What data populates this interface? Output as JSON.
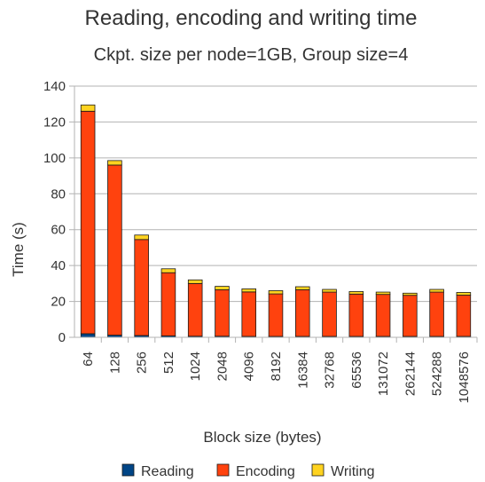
{
  "chart_data": {
    "type": "bar",
    "stacked": true,
    "title": "Reading, encoding and writing time",
    "subtitle": "Ckpt. size per node=1GB, Group size=4",
    "xlabel": "Block size (bytes)",
    "ylabel": "Time (s)",
    "ylim": [
      0,
      140
    ],
    "yticks": [
      "0",
      "20",
      "40",
      "60",
      "80",
      "100",
      "120",
      "140"
    ],
    "grid": true,
    "legend_position": "bottom",
    "categories": [
      "64",
      "128",
      "256",
      "512",
      "1024",
      "2048",
      "4096",
      "8192",
      "16384",
      "32768",
      "65536",
      "131072",
      "262144",
      "524288",
      "1048576"
    ],
    "series": [
      {
        "name": "Reading",
        "color": "#004586",
        "values": [
          2,
          1.2,
          1,
          0.8,
          0.6,
          0.6,
          0.5,
          0.5,
          0.5,
          0.5,
          0.5,
          0.5,
          0.5,
          0.5,
          0.5
        ]
      },
      {
        "name": "Encoding",
        "color": "#ff420e",
        "values": [
          124,
          94.8,
          53.5,
          35.2,
          29.4,
          25.9,
          24.8,
          23.7,
          26,
          24.7,
          23.6,
          23.4,
          22.9,
          24.7,
          23
        ]
      },
      {
        "name": "Writing",
        "color": "#ffd320",
        "values": [
          3.5,
          2.5,
          2.5,
          2.2,
          2,
          1.9,
          1.7,
          1.8,
          1.7,
          1.5,
          1.4,
          1.3,
          1.2,
          1.5,
          1.5
        ]
      }
    ]
  }
}
